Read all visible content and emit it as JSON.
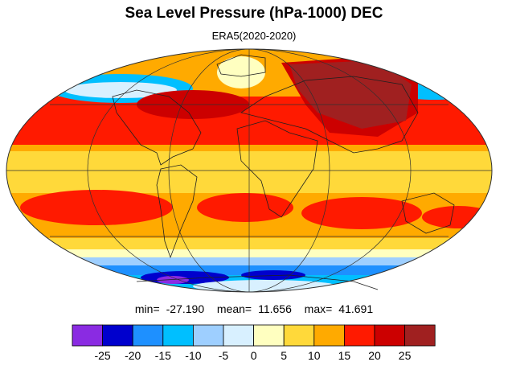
{
  "title": "Sea Level Pressure (hPa-1000) DEC",
  "subtitle": "ERA5(2020-2020)",
  "stats": {
    "min_label": "min=",
    "min_value": "-27.190",
    "mean_label": "mean=",
    "mean_value": "11.656",
    "max_label": "max=",
    "max_value": "41.691"
  },
  "colorbar": {
    "colors": [
      "#8a2be2",
      "#0000cd",
      "#1e90ff",
      "#00bfff",
      "#9ecfff",
      "#d8f0ff",
      "#ffffc0",
      "#ffd93a",
      "#ffaa00",
      "#ff1a00",
      "#cc0000",
      "#a02020"
    ],
    "tick_labels": [
      "-25",
      "-20",
      "-15",
      "-10",
      "-5",
      "0",
      "5",
      "10",
      "15",
      "20",
      "25"
    ]
  },
  "map": {
    "projection": "mollweide",
    "field_colors": {
      "high_max": "#a02020",
      "high": "#cc0000",
      "band20": "#ff1a00",
      "band15": "#ffaa00",
      "band10": "#ffd93a",
      "band5": "#ffffc0",
      "zero": "#d8f0ff",
      "neg5": "#9ecfff",
      "neg10": "#00bfff",
      "neg15": "#1e90ff",
      "neg20": "#0000cd",
      "neg25": "#8a2be2"
    }
  }
}
